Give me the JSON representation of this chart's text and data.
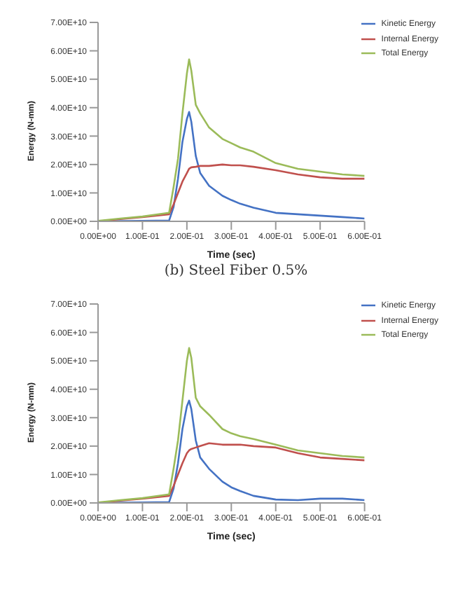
{
  "chart_data": [
    {
      "type": "line",
      "xlabel": "Time (sec)",
      "ylabel": "Energy (N-mm)",
      "annotations": [
        "(b) Steel Fiber 0.5%"
      ],
      "legend": "top right",
      "grid": false,
      "x": [
        0,
        0.05,
        0.1,
        0.16,
        0.17,
        0.18,
        0.19,
        0.2,
        0.205,
        0.21,
        0.22,
        0.23,
        0.25,
        0.28,
        0.3,
        0.32,
        0.35,
        0.4,
        0.45,
        0.5,
        0.55,
        0.6
      ],
      "xlim": [
        0,
        0.6
      ],
      "xticks": [
        {
          "value": 0,
          "label": "0.00E+00"
        },
        {
          "value": 0.1,
          "label": "1.00E-01"
        },
        {
          "value": 0.2,
          "label": "2.00E-01"
        },
        {
          "value": 0.3,
          "label": "3.00E-01"
        },
        {
          "value": 0.4,
          "label": "4.00E-01"
        },
        {
          "value": 0.5,
          "label": "5.00E-01"
        },
        {
          "value": 0.6,
          "label": "6.00E-01"
        }
      ],
      "ylim": [
        0,
        70000000000.0
      ],
      "yticks": [
        {
          "value": 0,
          "label": "0.00E+00"
        },
        {
          "value": 10000000000.0,
          "label": "1.00E+10"
        },
        {
          "value": 20000000000.0,
          "label": "2.00E+10"
        },
        {
          "value": 30000000000.0,
          "label": "3.00E+10"
        },
        {
          "value": 40000000000.0,
          "label": "4.00E+10"
        },
        {
          "value": 50000000000.0,
          "label": "5.00E+10"
        },
        {
          "value": 60000000000.0,
          "label": "6.00E+10"
        },
        {
          "value": 70000000000.0,
          "label": "7.00E+10"
        }
      ],
      "series": [
        {
          "name": "Kinetic Energy",
          "color": "#4472c4",
          "values": [
            0,
            100000000.0,
            200000000.0,
            300000000.0,
            5000000000.0,
            15000000000.0,
            28000000000.0,
            36000000000.0,
            38500000000.0,
            35000000000.0,
            23000000000.0,
            17000000000.0,
            12500000000.0,
            9000000000.0,
            7500000000.0,
            6200000000.0,
            4800000000.0,
            3000000000.0,
            2500000000.0,
            2000000000.0,
            1500000000.0,
            1000000000.0
          ]
        },
        {
          "name": "Internal Energy",
          "color": "#c0504d",
          "values": [
            0,
            800000000.0,
            1500000000.0,
            2500000000.0,
            6000000000.0,
            10000000000.0,
            14000000000.0,
            17000000000.0,
            18500000000.0,
            19000000000.0,
            19200000000.0,
            19500000000.0,
            19500000000.0,
            20000000000.0,
            19700000000.0,
            19700000000.0,
            19200000000.0,
            18000000000.0,
            16500000000.0,
            15500000000.0,
            15000000000.0,
            15000000000.0
          ]
        },
        {
          "name": "Total Energy",
          "color": "#9bbb59",
          "values": [
            200000000.0,
            1000000000.0,
            1700000000.0,
            3000000000.0,
            12000000000.0,
            22000000000.0,
            38000000000.0,
            52000000000.0,
            57000000000.0,
            53000000000.0,
            41000000000.0,
            38000000000.0,
            33000000000.0,
            29000000000.0,
            27500000000.0,
            26000000000.0,
            24500000000.0,
            20500000000.0,
            18500000000.0,
            17500000000.0,
            16500000000.0,
            16000000000.0
          ]
        }
      ]
    },
    {
      "type": "line",
      "xlabel": "Time (sec)",
      "ylabel": "Energy (N-mm)",
      "legend": "top right",
      "grid": false,
      "x": [
        0,
        0.05,
        0.1,
        0.16,
        0.17,
        0.18,
        0.19,
        0.2,
        0.205,
        0.21,
        0.22,
        0.23,
        0.25,
        0.28,
        0.3,
        0.32,
        0.35,
        0.4,
        0.45,
        0.5,
        0.55,
        0.6
      ],
      "xlim": [
        0,
        0.6
      ],
      "xticks": [
        {
          "value": 0,
          "label": "0.00E+00"
        },
        {
          "value": 0.1,
          "label": "1.00E-01"
        },
        {
          "value": 0.2,
          "label": "2.00E-01"
        },
        {
          "value": 0.3,
          "label": "3.00E-01"
        },
        {
          "value": 0.4,
          "label": "4.00E-01"
        },
        {
          "value": 0.5,
          "label": "5.00E-01"
        },
        {
          "value": 0.6,
          "label": "6.00E-01"
        }
      ],
      "ylim": [
        0,
        70000000000.0
      ],
      "yticks": [
        {
          "value": 0,
          "label": "0.00E+00"
        },
        {
          "value": 10000000000.0,
          "label": "1.00E+10"
        },
        {
          "value": 20000000000.0,
          "label": "2.00E+10"
        },
        {
          "value": 30000000000.0,
          "label": "3.00E+10"
        },
        {
          "value": 40000000000.0,
          "label": "4.00E+10"
        },
        {
          "value": 50000000000.0,
          "label": "5.00E+10"
        },
        {
          "value": 60000000000.0,
          "label": "6.00E+10"
        },
        {
          "value": 70000000000.0,
          "label": "7.00E+10"
        }
      ],
      "series": [
        {
          "name": "Kinetic Energy",
          "color": "#4472c4",
          "values": [
            0,
            100000000.0,
            200000000.0,
            300000000.0,
            5000000000.0,
            14000000000.0,
            26000000000.0,
            34000000000.0,
            36000000000.0,
            33000000000.0,
            22000000000.0,
            16000000000.0,
            12000000000.0,
            7500000000.0,
            5500000000.0,
            4200000000.0,
            2500000000.0,
            1200000000.0,
            1000000000.0,
            1500000000.0,
            1500000000.0,
            1000000000.0
          ]
        },
        {
          "name": "Internal Energy",
          "color": "#c0504d",
          "values": [
            0,
            800000000.0,
            1500000000.0,
            2500000000.0,
            6000000000.0,
            10000000000.0,
            14000000000.0,
            17500000000.0,
            18500000000.0,
            19000000000.0,
            19500000000.0,
            20000000000.0,
            21000000000.0,
            20500000000.0,
            20500000000.0,
            20500000000.0,
            20000000000.0,
            19500000000.0,
            17500000000.0,
            16000000000.0,
            15500000000.0,
            15000000000.0
          ]
        },
        {
          "name": "Total Energy",
          "color": "#9bbb59",
          "values": [
            200000000.0,
            1000000000.0,
            1700000000.0,
            3000000000.0,
            12000000000.0,
            22000000000.0,
            36000000000.0,
            50000000000.0,
            54500000000.0,
            51000000000.0,
            37000000000.0,
            34000000000.0,
            31000000000.0,
            26000000000.0,
            24500000000.0,
            23500000000.0,
            22500000000.0,
            20500000000.0,
            18500000000.0,
            17500000000.0,
            16500000000.0,
            16000000000.0
          ]
        }
      ]
    }
  ]
}
